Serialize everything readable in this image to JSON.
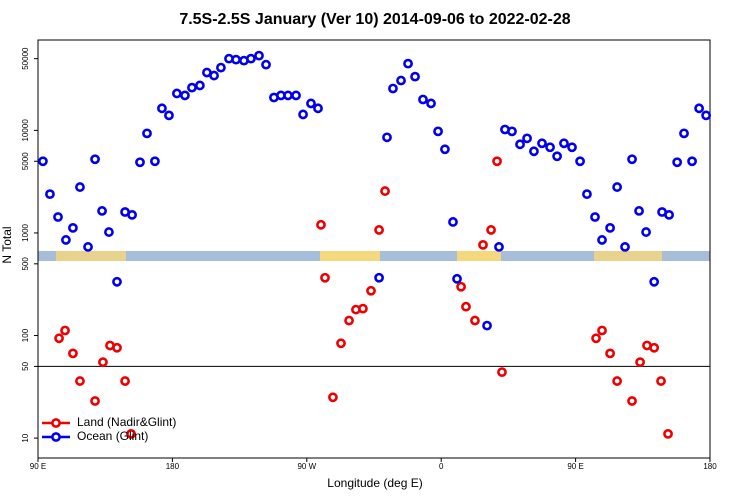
{
  "chart_data": {
    "type": "scatter",
    "title": "7.5S-2.5S January (Ver 10)   2014-09-06 to 2022-02-28",
    "x_label": "Longitude (deg E)",
    "y_label": "N Total",
    "xlim": [
      90,
      540
    ],
    "xticks": [
      {
        "value": 90,
        "label": "90 E"
      },
      180,
      {
        "value": 270,
        "label": "90 W"
      },
      {
        "value": 360,
        "label": "0"
      },
      {
        "value": 450,
        "label": "90 E"
      },
      {
        "value": 540,
        "label": "180"
      }
    ],
    "ylim": [
      6.4,
      76000
    ],
    "y_log": true,
    "yticks": [
      10,
      50,
      100,
      500,
      1000,
      5000,
      10000,
      50000
    ],
    "reference_line": 50,
    "legend_position": "bottom-left",
    "series": [
      {
        "name": "Land (Nadir&Glint)",
        "color": "#ee0000",
        "x": [
          104.1,
          108.1,
          113.4,
          118.1,
          128.2,
          133.5,
          138.2,
          142.9,
          148.3,
          152.3,
          279.5,
          282.2,
          287.5,
          292.9,
          298.3,
          302.9,
          307.6,
          313.0,
          318.4,
          322.4,
          373.3,
          376.6,
          382.6,
          388.0,
          393.4,
          397.4,
          400.7,
          463.7,
          467.7,
          473.1,
          477.8,
          487.8,
          493.2,
          497.8,
          502.6,
          507.2,
          511.9
        ],
        "values": [
          94,
          112,
          67,
          36,
          23,
          55,
          80,
          76,
          36,
          11,
          1200,
          366,
          25,
          84,
          140,
          179,
          183,
          273,
          1070,
          2560,
          299,
          191,
          140,
          765,
          1070,
          5000,
          44,
          94,
          112,
          67,
          36,
          23,
          55,
          80,
          76,
          36,
          11
        ]
      },
      {
        "name": "Ocean (Glint)",
        "color": "#0000ee",
        "x": [
          93.3,
          98.0,
          103.4,
          108.7,
          113.4,
          118.1,
          123.5,
          128.2,
          132.9,
          137.5,
          142.9,
          148.3,
          153.0,
          158.3,
          163.0,
          168.3,
          173.0,
          177.7,
          183.0,
          188.4,
          193.1,
          198.4,
          203.1,
          207.9,
          212.5,
          217.9,
          222.6,
          227.9,
          232.6,
          238.0,
          242.7,
          248.0,
          252.7,
          257.4,
          262.8,
          267.5,
          272.8,
          277.5,
          318.4,
          323.7,
          327.7,
          333.1,
          337.8,
          342.5,
          347.8,
          353.2,
          357.9,
          362.5,
          367.9,
          370.6,
          390.7,
          398.7,
          402.7,
          407.4,
          412.8,
          417.5,
          422.1,
          427.5,
          432.9,
          437.6,
          442.2,
          447.6,
          453.0,
          457.6,
          463.0,
          467.7,
          473.1,
          477.8,
          483.1,
          487.8,
          492.5,
          497.2,
          502.6,
          507.9,
          512.6,
          518.0,
          522.6,
          528.0,
          532.7,
          537.4
        ],
        "values": [
          5000,
          2390,
          1430,
          855,
          1120,
          2800,
          731,
          5230,
          1640,
          1020,
          334,
          1600,
          1500,
          4890,
          9350,
          5000,
          16400,
          14000,
          22900,
          21900,
          26100,
          27400,
          36600,
          34200,
          40900,
          50000,
          48900,
          47800,
          50000,
          53500,
          43700,
          20900,
          21900,
          21900,
          21900,
          14300,
          18300,
          16400,
          366,
          8550,
          25600,
          30600,
          44700,
          33400,
          20000,
          18300,
          9780,
          6540,
          1280,
          357,
          125,
          731,
          10200,
          9780,
          7310,
          8360,
          6250,
          7480,
          6840,
          5590,
          7480,
          6840,
          5000,
          2390,
          1430,
          855,
          1120,
          2800,
          731,
          5230,
          1640,
          1020,
          334,
          1600,
          1500,
          4890,
          9350,
          5000,
          16400,
          14000
        ]
      }
    ]
  }
}
